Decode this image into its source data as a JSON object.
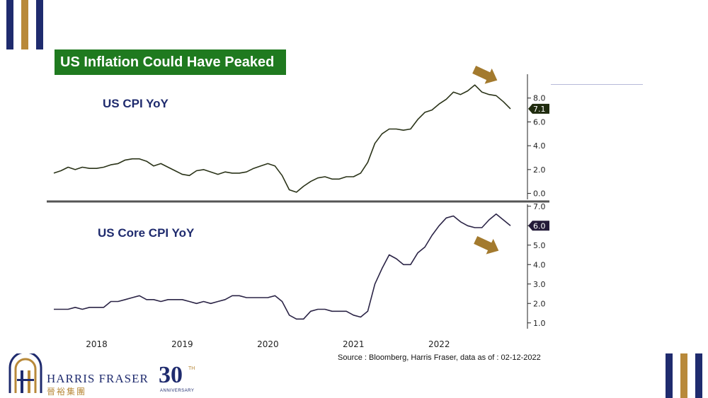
{
  "title": "US Inflation Could Have Peaked",
  "source": "Source : Bloomberg, Harris Fraser, data as of : 02-12-2022",
  "brand": {
    "name": "HARRIS FRASER",
    "chinese_name": "晉裕集團",
    "anniversary_number": "30",
    "anniversary_suffix": "TH",
    "anniversary_word": "ANNIVERSARY"
  },
  "colors": {
    "navy": "#1f2b6e",
    "gold": "#b8893a",
    "title_green": "#1f7a1f",
    "cpi_line": "#2a3318",
    "core_line": "#2b2446"
  },
  "chart_data": [
    {
      "type": "line",
      "title": "US CPI YoY",
      "x_tick_labels": [
        "2018",
        "2019",
        "2020",
        "2021",
        "2022"
      ],
      "y_ticks": [
        "0.0",
        "2.0",
        "4.0",
        "6.0",
        "8.0"
      ],
      "ylim": [
        -0.5,
        10
      ],
      "last_value_label": "7.1",
      "series": [
        {
          "x": [
            "2017-07",
            "2017-08",
            "2017-09",
            "2017-10",
            "2017-11",
            "2017-12",
            "2018-01",
            "2018-02",
            "2018-03",
            "2018-04",
            "2018-05",
            "2018-06",
            "2018-07",
            "2018-08",
            "2018-09",
            "2018-10",
            "2018-11",
            "2018-12",
            "2019-01",
            "2019-02",
            "2019-03",
            "2019-04",
            "2019-05",
            "2019-06",
            "2019-07",
            "2019-08",
            "2019-09",
            "2019-10",
            "2019-11",
            "2019-12",
            "2020-01",
            "2020-02",
            "2020-03",
            "2020-04",
            "2020-05",
            "2020-06",
            "2020-07",
            "2020-08",
            "2020-09",
            "2020-10",
            "2020-11",
            "2020-12",
            "2021-01",
            "2021-02",
            "2021-03",
            "2021-04",
            "2021-05",
            "2021-06",
            "2021-07",
            "2021-08",
            "2021-09",
            "2021-10",
            "2021-11",
            "2021-12",
            "2022-01",
            "2022-02",
            "2022-03",
            "2022-04",
            "2022-05",
            "2022-06",
            "2022-07",
            "2022-08",
            "2022-09",
            "2022-10",
            "2022-11"
          ],
          "values": [
            1.7,
            1.9,
            2.2,
            2.0,
            2.2,
            2.1,
            2.1,
            2.2,
            2.4,
            2.5,
            2.8,
            2.9,
            2.9,
            2.7,
            2.3,
            2.5,
            2.2,
            1.9,
            1.6,
            1.5,
            1.9,
            2.0,
            1.8,
            1.6,
            1.8,
            1.7,
            1.7,
            1.8,
            2.1,
            2.3,
            2.5,
            2.3,
            1.5,
            0.3,
            0.1,
            0.6,
            1.0,
            1.3,
            1.4,
            1.2,
            1.2,
            1.4,
            1.4,
            1.7,
            2.6,
            4.2,
            5.0,
            5.4,
            5.4,
            5.3,
            5.4,
            6.2,
            6.8,
            7.0,
            7.5,
            7.9,
            8.5,
            8.3,
            8.6,
            9.1,
            8.5,
            8.3,
            8.2,
            7.7,
            7.1
          ]
        }
      ]
    },
    {
      "type": "line",
      "title": "US Core CPI YoY",
      "x_tick_labels": [
        "2018",
        "2019",
        "2020",
        "2021",
        "2022"
      ],
      "y_ticks": [
        "1.0",
        "2.0",
        "3.0",
        "4.0",
        "5.0",
        "6.0",
        "7.0"
      ],
      "ylim": [
        0.7,
        7.1
      ],
      "last_value_label": "6.0",
      "series": [
        {
          "x": [
            "2017-07",
            "2017-08",
            "2017-09",
            "2017-10",
            "2017-11",
            "2017-12",
            "2018-01",
            "2018-02",
            "2018-03",
            "2018-04",
            "2018-05",
            "2018-06",
            "2018-07",
            "2018-08",
            "2018-09",
            "2018-10",
            "2018-11",
            "2018-12",
            "2019-01",
            "2019-02",
            "2019-03",
            "2019-04",
            "2019-05",
            "2019-06",
            "2019-07",
            "2019-08",
            "2019-09",
            "2019-10",
            "2019-11",
            "2019-12",
            "2020-01",
            "2020-02",
            "2020-03",
            "2020-04",
            "2020-05",
            "2020-06",
            "2020-07",
            "2020-08",
            "2020-09",
            "2020-10",
            "2020-11",
            "2020-12",
            "2021-01",
            "2021-02",
            "2021-03",
            "2021-04",
            "2021-05",
            "2021-06",
            "2021-07",
            "2021-08",
            "2021-09",
            "2021-10",
            "2021-11",
            "2021-12",
            "2022-01",
            "2022-02",
            "2022-03",
            "2022-04",
            "2022-05",
            "2022-06",
            "2022-07",
            "2022-08",
            "2022-09",
            "2022-10",
            "2022-11"
          ],
          "values": [
            1.7,
            1.7,
            1.7,
            1.8,
            1.7,
            1.8,
            1.8,
            1.8,
            2.1,
            2.1,
            2.2,
            2.3,
            2.4,
            2.2,
            2.2,
            2.1,
            2.2,
            2.2,
            2.2,
            2.1,
            2.0,
            2.1,
            2.0,
            2.1,
            2.2,
            2.4,
            2.4,
            2.3,
            2.3,
            2.3,
            2.3,
            2.4,
            2.1,
            1.4,
            1.2,
            1.2,
            1.6,
            1.7,
            1.7,
            1.6,
            1.6,
            1.6,
            1.4,
            1.3,
            1.6,
            3.0,
            3.8,
            4.5,
            4.3,
            4.0,
            4.0,
            4.6,
            4.9,
            5.5,
            6.0,
            6.4,
            6.5,
            6.2,
            6.0,
            5.9,
            5.9,
            6.3,
            6.6,
            6.3,
            6.0
          ]
        }
      ]
    }
  ]
}
